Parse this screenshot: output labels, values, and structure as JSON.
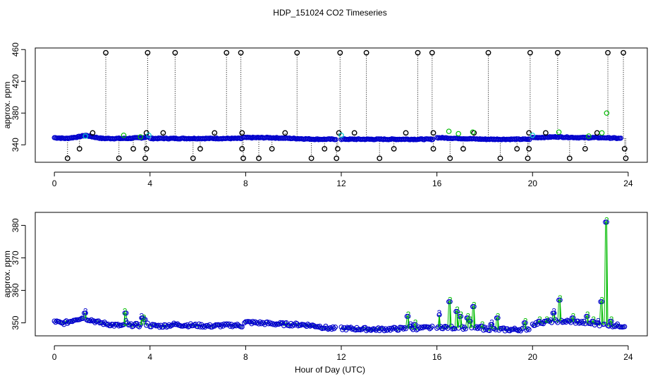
{
  "chart_data": [
    {
      "type": "scatter",
      "title": "HDP_151024  CO2 Timeseries",
      "xlabel": "",
      "ylabel": "approx. ppm",
      "xlim": [
        -0.8,
        24.8
      ],
      "ylim": [
        318,
        462
      ],
      "x_ticks": [
        0,
        4,
        8,
        12,
        16,
        20,
        24
      ],
      "x_tick_labels": [
        "0",
        "4",
        "8",
        "12",
        "16",
        "20",
        "24"
      ],
      "y_ticks": [
        340,
        380,
        420,
        460
      ],
      "y_tick_labels": [
        "340",
        "380",
        "420",
        "460"
      ],
      "grid": false,
      "colors": {
        "valid": "#0000cc",
        "flag2": "#00bb00",
        "flag3": "#00cccc",
        "outlier": "#000000",
        "drop": "#000000"
      },
      "baseline_segments": [
        {
          "x": [
            0.0,
            0.5,
            1.0,
            1.3,
            1.6,
            2.0,
            3.0,
            3.7,
            3.9
          ],
          "y": [
            349,
            348,
            350,
            352,
            350,
            348,
            348,
            349,
            350
          ]
        },
        {
          "x": [
            4.0,
            5.0,
            6.0,
            7.0,
            7.85
          ],
          "y": [
            348,
            348,
            348,
            348,
            348
          ]
        },
        {
          "x": [
            7.9,
            9.0,
            10.0,
            11.0,
            11.8
          ],
          "y": [
            349,
            349,
            348,
            347,
            347
          ]
        },
        {
          "x": [
            12.0,
            13.0,
            14.0,
            15.0,
            15.85
          ],
          "y": [
            347,
            347,
            347,
            347,
            347
          ]
        },
        {
          "x": [
            16.0,
            17.0,
            18.0,
            19.0,
            19.9
          ],
          "y": [
            349,
            348,
            347,
            347,
            347
          ]
        },
        {
          "x": [
            20.0,
            21.0,
            22.0,
            23.0,
            23.7
          ],
          "y": [
            349,
            350,
            349,
            349,
            348
          ]
        }
      ],
      "outliers_high": [
        {
          "x": 2.15,
          "y": 456
        },
        {
          "x": 3.9,
          "y": 456
        },
        {
          "x": 5.05,
          "y": 456
        },
        {
          "x": 7.2,
          "y": 456
        },
        {
          "x": 7.8,
          "y": 456
        },
        {
          "x": 10.15,
          "y": 456
        },
        {
          "x": 11.95,
          "y": 456
        },
        {
          "x": 13.05,
          "y": 456
        },
        {
          "x": 15.2,
          "y": 456
        },
        {
          "x": 15.8,
          "y": 456
        },
        {
          "x": 18.15,
          "y": 456
        },
        {
          "x": 19.9,
          "y": 456
        },
        {
          "x": 21.05,
          "y": 456
        },
        {
          "x": 23.15,
          "y": 456
        },
        {
          "x": 23.8,
          "y": 456
        }
      ],
      "outliers_mid": [
        {
          "x": 1.6,
          "y": 355
        },
        {
          "x": 3.85,
          "y": 355
        },
        {
          "x": 4.55,
          "y": 355
        },
        {
          "x": 6.7,
          "y": 355
        },
        {
          "x": 7.85,
          "y": 355
        },
        {
          "x": 9.65,
          "y": 355
        },
        {
          "x": 11.9,
          "y": 355
        },
        {
          "x": 12.55,
          "y": 355
        },
        {
          "x": 14.7,
          "y": 355
        },
        {
          "x": 15.85,
          "y": 355
        },
        {
          "x": 17.55,
          "y": 355
        },
        {
          "x": 19.85,
          "y": 355
        },
        {
          "x": 20.55,
          "y": 355
        },
        {
          "x": 22.7,
          "y": 355
        }
      ],
      "outliers_low": [
        {
          "x": 0.55,
          "y": 323
        },
        {
          "x": 1.05,
          "y": 335
        },
        {
          "x": 2.7,
          "y": 323
        },
        {
          "x": 3.3,
          "y": 335
        },
        {
          "x": 3.8,
          "y": 323
        },
        {
          "x": 3.85,
          "y": 335
        },
        {
          "x": 5.8,
          "y": 323
        },
        {
          "x": 6.1,
          "y": 335
        },
        {
          "x": 7.85,
          "y": 335
        },
        {
          "x": 7.9,
          "y": 323
        },
        {
          "x": 8.55,
          "y": 323
        },
        {
          "x": 9.1,
          "y": 335
        },
        {
          "x": 10.75,
          "y": 323
        },
        {
          "x": 11.3,
          "y": 335
        },
        {
          "x": 11.8,
          "y": 323
        },
        {
          "x": 11.85,
          "y": 335
        },
        {
          "x": 13.6,
          "y": 323
        },
        {
          "x": 14.2,
          "y": 335
        },
        {
          "x": 15.85,
          "y": 335
        },
        {
          "x": 16.55,
          "y": 323
        },
        {
          "x": 17.1,
          "y": 335
        },
        {
          "x": 18.65,
          "y": 323
        },
        {
          "x": 19.35,
          "y": 335
        },
        {
          "x": 19.8,
          "y": 323
        },
        {
          "x": 19.85,
          "y": 335
        },
        {
          "x": 21.55,
          "y": 323
        },
        {
          "x": 22.2,
          "y": 335
        },
        {
          "x": 23.85,
          "y": 335
        },
        {
          "x": 23.9,
          "y": 323
        }
      ],
      "flag2_points": [
        {
          "x": 2.9,
          "y": 352
        },
        {
          "x": 3.6,
          "y": 350
        },
        {
          "x": 16.5,
          "y": 357
        },
        {
          "x": 16.9,
          "y": 354
        },
        {
          "x": 17.5,
          "y": 356
        },
        {
          "x": 21.1,
          "y": 356
        },
        {
          "x": 22.35,
          "y": 351
        },
        {
          "x": 22.9,
          "y": 355
        },
        {
          "x": 23.1,
          "y": 380
        }
      ],
      "flag3_points": [
        {
          "x": 3.95,
          "y": 352
        },
        {
          "x": 12.0,
          "y": 352
        },
        {
          "x": 20.0,
          "y": 352
        },
        {
          "x": 1.3,
          "y": 351
        }
      ]
    },
    {
      "type": "scatter",
      "title": "",
      "xlabel": "Hour of Day (UTC)",
      "ylabel": "approx. ppm",
      "xlim": [
        -0.8,
        24.8
      ],
      "ylim": [
        346,
        384
      ],
      "x_ticks": [
        0,
        4,
        8,
        12,
        16,
        20,
        24
      ],
      "x_tick_labels": [
        "0",
        "4",
        "8",
        "12",
        "16",
        "20",
        "24"
      ],
      "y_ticks": [
        350,
        360,
        370,
        380
      ],
      "y_tick_labels": [
        "350",
        "360",
        "370",
        "380"
      ],
      "grid": false,
      "colors": {
        "valid": "#0000cc",
        "flag2": "#00bb00",
        "flag3": "#0000cc"
      },
      "baseline_segments": [
        {
          "x": [
            0.0,
            0.3,
            0.6,
            0.9,
            1.2,
            1.5,
            1.8,
            2.1,
            2.5,
            3.0,
            3.3,
            3.6,
            3.9
          ],
          "y": [
            350.5,
            349.8,
            350.3,
            351.2,
            351.5,
            351.0,
            350.2,
            349.8,
            349.3,
            349.0,
            349.4,
            349.2,
            349.6
          ]
        },
        {
          "x": [
            4.0,
            4.5,
            5.0,
            5.5,
            6.0,
            6.5,
            7.0,
            7.5,
            7.85
          ],
          "y": [
            349.2,
            349.0,
            349.5,
            349.3,
            349.2,
            349.0,
            349.2,
            349.3,
            349.1
          ]
        },
        {
          "x": [
            7.95,
            8.5,
            9.0,
            9.5,
            10.0,
            10.5,
            11.0,
            11.5,
            11.8
          ],
          "y": [
            350.2,
            350.0,
            349.8,
            349.6,
            349.5,
            349.4,
            349.0,
            348.3,
            348.2
          ]
        },
        {
          "x": [
            12.0,
            12.5,
            13.0,
            13.5,
            14.0,
            14.5,
            15.0,
            15.5,
            15.85
          ],
          "y": [
            348.3,
            348.2,
            348.1,
            348.0,
            348.1,
            348.2,
            348.3,
            348.4,
            348.5
          ]
        },
        {
          "x": [
            16.0,
            16.5,
            17.0,
            17.5,
            18.0,
            18.5,
            19.0,
            19.5,
            19.9
          ],
          "y": [
            348.8,
            348.6,
            348.5,
            348.4,
            348.2,
            348.0,
            347.9,
            348.0,
            348.3
          ]
        },
        {
          "x": [
            20.0,
            20.5,
            21.0,
            21.5,
            22.0,
            22.5,
            23.0,
            23.5,
            23.9
          ],
          "y": [
            349.5,
            350.3,
            350.6,
            350.4,
            350.2,
            349.8,
            349.4,
            349.2,
            349.0
          ]
        }
      ],
      "spikes": [
        {
          "x": 1.3,
          "y": 353.5,
          "label": "3"
        },
        {
          "x": 2.95,
          "y": 353.5,
          "label": "2"
        },
        {
          "x": 3.0,
          "y": 350.5,
          "label": "3"
        },
        {
          "x": 3.65,
          "y": 352.0,
          "label": "3"
        },
        {
          "x": 3.75,
          "y": 351.5,
          "label": "2"
        },
        {
          "x": 14.8,
          "y": 352.5,
          "label": "2"
        },
        {
          "x": 15.1,
          "y": 350.0,
          "label": "2"
        },
        {
          "x": 14.9,
          "y": 349.5,
          "label": "3"
        },
        {
          "x": 16.1,
          "y": 353.0,
          "label": "3"
        },
        {
          "x": 16.55,
          "y": 357.0,
          "label": "2"
        },
        {
          "x": 16.85,
          "y": 354.0,
          "label": "2"
        },
        {
          "x": 17.0,
          "y": 352.5,
          "label": "2"
        },
        {
          "x": 17.3,
          "y": 352.0,
          "label": "2"
        },
        {
          "x": 17.55,
          "y": 355.5,
          "label": "2"
        },
        {
          "x": 17.4,
          "y": 351.0,
          "label": "2"
        },
        {
          "x": 17.9,
          "y": 349.5,
          "label": "2"
        },
        {
          "x": 18.3,
          "y": 350.0,
          "label": "3"
        },
        {
          "x": 18.55,
          "y": 352.0,
          "label": "2"
        },
        {
          "x": 19.7,
          "y": 350.5,
          "label": "2"
        },
        {
          "x": 20.3,
          "y": 351.0,
          "label": "2"
        },
        {
          "x": 20.6,
          "y": 351.0,
          "label": "2"
        },
        {
          "x": 20.9,
          "y": 353.5,
          "label": "3"
        },
        {
          "x": 21.15,
          "y": 357.5,
          "label": "2"
        },
        {
          "x": 21.7,
          "y": 352.0,
          "label": "2"
        },
        {
          "x": 22.3,
          "y": 352.5,
          "label": "2"
        },
        {
          "x": 22.55,
          "y": 351.0,
          "label": "2"
        },
        {
          "x": 22.75,
          "y": 350.5,
          "label": "3"
        },
        {
          "x": 22.9,
          "y": 357.0,
          "label": "2"
        },
        {
          "x": 23.1,
          "y": 381.5,
          "label": "2"
        },
        {
          "x": 23.3,
          "y": 351.0,
          "label": "2"
        }
      ]
    }
  ],
  "figure": {
    "title": "HDP_151024  CO2 Timeseries",
    "xlabel": "Hour of Day (UTC)"
  }
}
